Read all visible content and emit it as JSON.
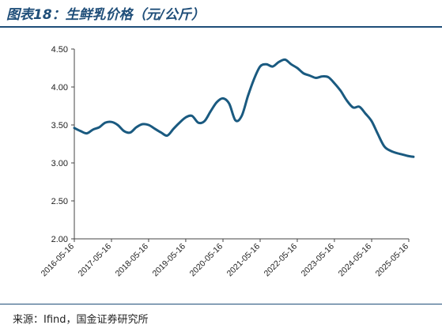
{
  "header": {
    "title": "图表18：生鲜乳价格（元/公斤）"
  },
  "footer": {
    "source": "来源：Ifind，国金证券研究所"
  },
  "colors": {
    "line": "#1a5a80",
    "accent": "#1f4e79",
    "axis": "#444444"
  },
  "chart_data": {
    "type": "line",
    "title": "图表18：生鲜乳价格（元/公斤）",
    "xlabel": "",
    "ylabel": "",
    "ylim": [
      2.0,
      4.5
    ],
    "yticks": [
      "2.00",
      "2.50",
      "3.00",
      "3.50",
      "4.00",
      "4.50"
    ],
    "xticks": [
      "2016-05-16",
      "2017-05-16",
      "2018-05-16",
      "2019-05-16",
      "2020-05-16",
      "2021-05-16",
      "2022-05-16",
      "2023-05-16",
      "2024-05-16",
      "2025-05-16"
    ],
    "grid": false,
    "series": [
      {
        "x": [
          "2016-05-16",
          "2016-07-16",
          "2016-09-16",
          "2016-11-16",
          "2017-01-16",
          "2017-03-16",
          "2017-05-16",
          "2017-07-16",
          "2017-09-16",
          "2017-11-16",
          "2018-01-16",
          "2018-03-16",
          "2018-05-16",
          "2018-07-16",
          "2018-09-16",
          "2018-11-16",
          "2019-01-16",
          "2019-03-16",
          "2019-05-16",
          "2019-07-16",
          "2019-09-16",
          "2019-11-16",
          "2020-01-16",
          "2020-03-16",
          "2020-05-16",
          "2020-07-16",
          "2020-09-16",
          "2020-11-16",
          "2021-01-16",
          "2021-03-16",
          "2021-05-16",
          "2021-07-16",
          "2021-09-16",
          "2021-11-16",
          "2022-01-16",
          "2022-03-16",
          "2022-05-16",
          "2022-07-16",
          "2022-09-16",
          "2022-11-16",
          "2023-01-16",
          "2023-03-16",
          "2023-05-16",
          "2023-07-16",
          "2023-09-16",
          "2023-11-16",
          "2024-01-16",
          "2024-03-16",
          "2024-05-16",
          "2024-07-16",
          "2024-09-16",
          "2024-11-16",
          "2025-01-16",
          "2025-03-16",
          "2025-05-16",
          "2025-07-01"
        ],
        "values": [
          3.46,
          3.42,
          3.39,
          3.44,
          3.47,
          3.53,
          3.54,
          3.5,
          3.42,
          3.4,
          3.47,
          3.51,
          3.5,
          3.45,
          3.4,
          3.36,
          3.45,
          3.53,
          3.6,
          3.62,
          3.53,
          3.55,
          3.68,
          3.8,
          3.85,
          3.78,
          3.56,
          3.62,
          3.88,
          4.1,
          4.27,
          4.3,
          4.27,
          4.33,
          4.36,
          4.3,
          4.25,
          4.18,
          4.15,
          4.12,
          4.14,
          4.13,
          4.05,
          3.95,
          3.82,
          3.73,
          3.74,
          3.65,
          3.55,
          3.38,
          3.22,
          3.16,
          3.13,
          3.11,
          3.09,
          3.08
        ]
      }
    ]
  }
}
